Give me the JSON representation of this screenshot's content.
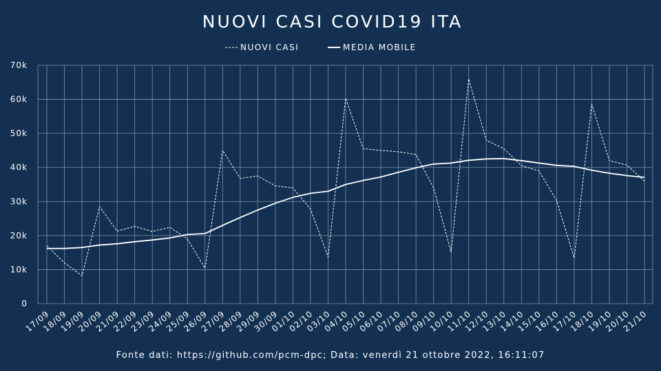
{
  "chart_data": {
    "type": "line",
    "title": "NUOVI CASI COVID19 ITA",
    "xlabel": "",
    "ylabel": "",
    "ylim": [
      0,
      70000
    ],
    "yticks": [
      0,
      10000,
      20000,
      30000,
      40000,
      50000,
      60000,
      70000
    ],
    "ytick_labels": [
      "0",
      "10k",
      "20k",
      "30k",
      "40k",
      "50k",
      "60k",
      "70k"
    ],
    "grid": true,
    "legend_position": "top-center",
    "categories": [
      "17/09",
      "18/09",
      "19/09",
      "20/09",
      "21/09",
      "22/09",
      "23/09",
      "24/09",
      "25/09",
      "26/09",
      "27/09",
      "28/09",
      "29/09",
      "30/09",
      "01/10",
      "02/10",
      "03/10",
      "04/10",
      "05/10",
      "06/10",
      "07/10",
      "08/10",
      "09/10",
      "10/10",
      "11/10",
      "12/10",
      "13/10",
      "14/10",
      "15/10",
      "16/10",
      "17/10",
      "18/10",
      "19/10",
      "20/10",
      "21/10"
    ],
    "series": [
      {
        "name": "NUOVI CASI",
        "style": "dashed",
        "color": "#ffffff",
        "values": [
          17000,
          12000,
          8200,
          28500,
          21300,
          22700,
          21200,
          22400,
          19000,
          10400,
          45000,
          36800,
          37500,
          34600,
          34000,
          27800,
          13700,
          60300,
          45500,
          45000,
          44600,
          43800,
          34100,
          15100,
          66000,
          48000,
          45500,
          40500,
          39000,
          30300,
          13400,
          58600,
          42000,
          40700,
          36000
        ]
      },
      {
        "name": "MEDIA MOBILE",
        "style": "solid",
        "color": "#ffffff",
        "values": [
          16200,
          16200,
          16500,
          17200,
          17600,
          18200,
          18700,
          19300,
          20300,
          20600,
          23000,
          25300,
          27500,
          29500,
          31200,
          32400,
          33000,
          35000,
          36200,
          37200,
          38600,
          39900,
          41000,
          41300,
          42100,
          42500,
          42600,
          42000,
          41300,
          40600,
          40300,
          39200,
          38300,
          37600,
          37100
        ]
      }
    ]
  },
  "footer": {
    "source_text": "Fonte dati: https://github.com/pcm-dpc; Data: venerdì 21 ottobre 2022, 16:11:07"
  }
}
